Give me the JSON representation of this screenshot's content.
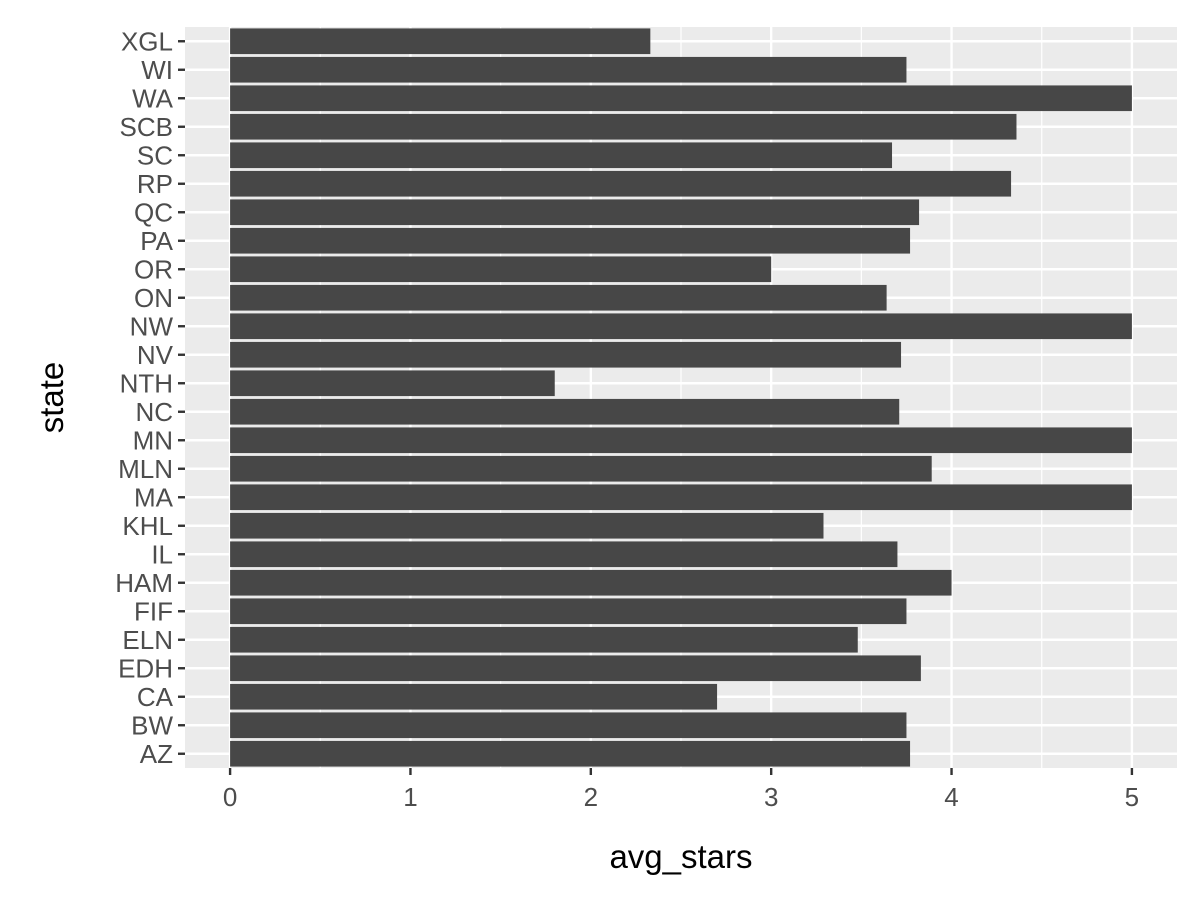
{
  "chart_data": {
    "type": "bar",
    "orientation": "horizontal",
    "title": "",
    "xlabel": "avg_stars",
    "ylabel": "state",
    "xlim": [
      -0.25,
      5.25
    ],
    "x_ticks": [
      0,
      1,
      2,
      3,
      4,
      5
    ],
    "grid": true,
    "categories": [
      "AZ",
      "BW",
      "CA",
      "EDH",
      "ELN",
      "FIF",
      "HAM",
      "IL",
      "KHL",
      "MA",
      "MLN",
      "MN",
      "NC",
      "NTH",
      "NV",
      "NW",
      "ON",
      "OR",
      "PA",
      "QC",
      "RP",
      "SC",
      "SCB",
      "WA",
      "WI",
      "XGL"
    ],
    "values": [
      3.77,
      3.75,
      2.7,
      3.83,
      3.48,
      3.75,
      4.0,
      3.7,
      3.29,
      5.0,
      3.89,
      5.0,
      3.71,
      1.8,
      3.72,
      5.0,
      3.64,
      3.0,
      3.77,
      3.82,
      4.33,
      3.67,
      4.36,
      5.0,
      3.75,
      2.33
    ],
    "colors": {
      "bar": "#474747",
      "panel": "#ebebeb",
      "grid": "#ffffff",
      "tick_text": "#4d4d4d",
      "axis_title": "#000000"
    }
  }
}
